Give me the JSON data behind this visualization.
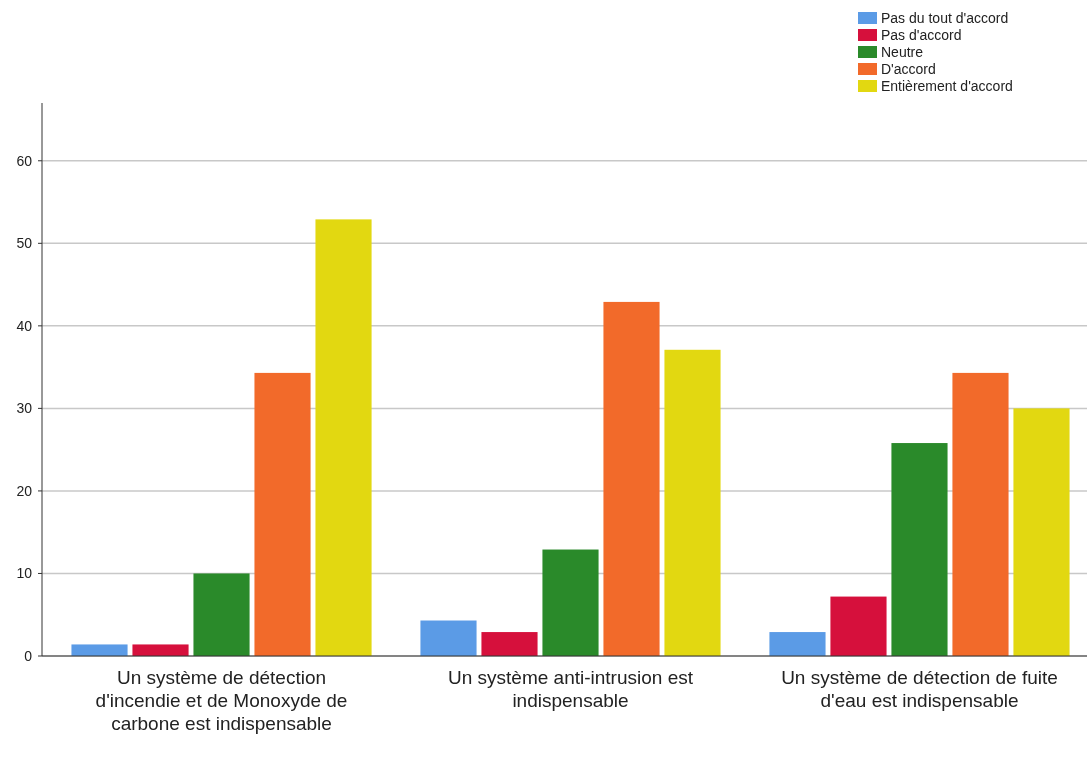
{
  "chart_data": {
    "type": "bar",
    "categories": [
      "Un système de détection d'incendie et de Monoxyde de carbone est indispensable",
      "Un système anti-intrusion est indispensable",
      "Un système de détection de fuite d'eau est indispensable"
    ],
    "series": [
      {
        "name": "Pas du tout d'accord",
        "color": "#5b9be6",
        "values": [
          1.4,
          4.3,
          2.9
        ]
      },
      {
        "name": "Pas d'accord",
        "color": "#d6103c",
        "values": [
          1.4,
          2.9,
          7.2
        ]
      },
      {
        "name": "Neutre",
        "color": "#2a8a2a",
        "values": [
          10,
          12.9,
          25.8
        ]
      },
      {
        "name": "D'accord",
        "color": "#f26a2a",
        "values": [
          34.3,
          42.9,
          34.3
        ]
      },
      {
        "name": "Entièrement d'accord",
        "color": "#e2d811",
        "values": [
          52.9,
          37.1,
          30
        ]
      }
    ],
    "ylim": [
      0,
      67
    ],
    "yticks": [
      0,
      10,
      20,
      30,
      40,
      50,
      60
    ],
    "grid": "y",
    "legend": "top right"
  }
}
